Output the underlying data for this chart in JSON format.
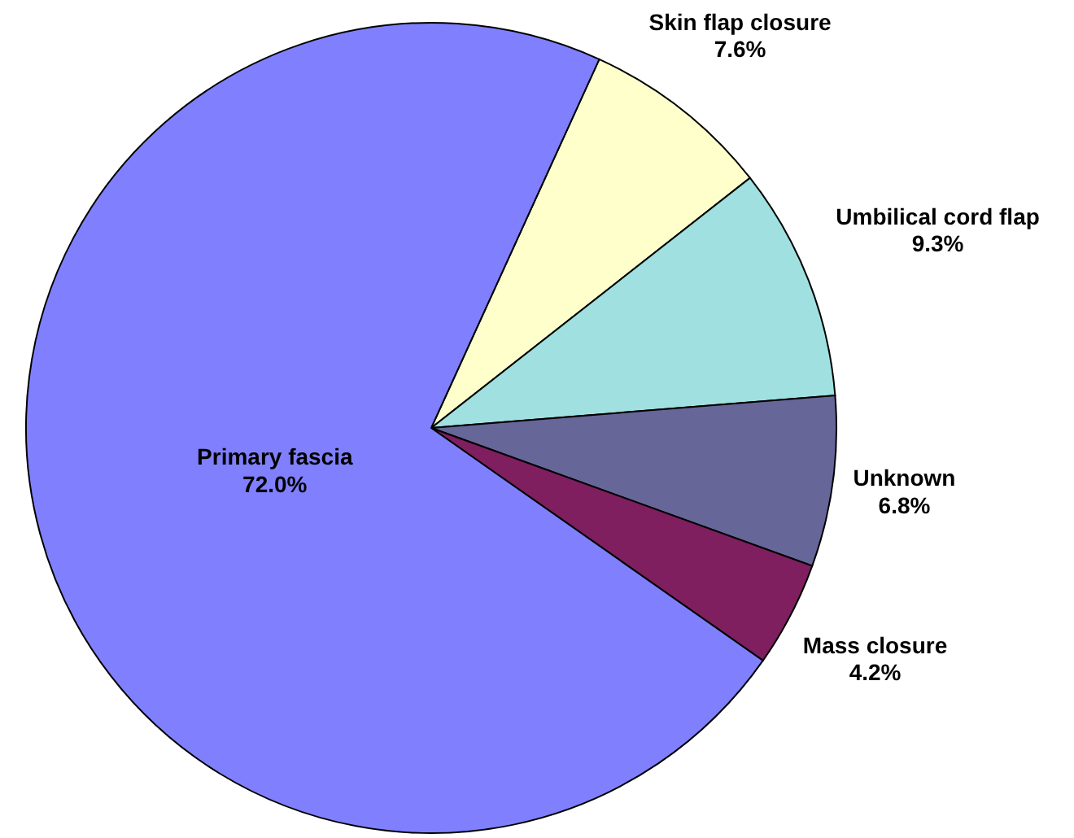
{
  "chart_data": {
    "type": "pie",
    "categories": [
      "Skin flap closure",
      "Umbilical cord flap",
      "Unknown",
      "Mass closure",
      "Primary fascia"
    ],
    "values": [
      7.6,
      9.3,
      6.8,
      4.2,
      72.0
    ],
    "colors": [
      "#ffffcc",
      "#a0e0e0",
      "#666699",
      "#7f1f5f",
      "#8080ff"
    ],
    "value_labels": [
      "7.6%",
      "9.3%",
      "6.8%",
      "4.2%",
      "72.0%"
    ]
  }
}
